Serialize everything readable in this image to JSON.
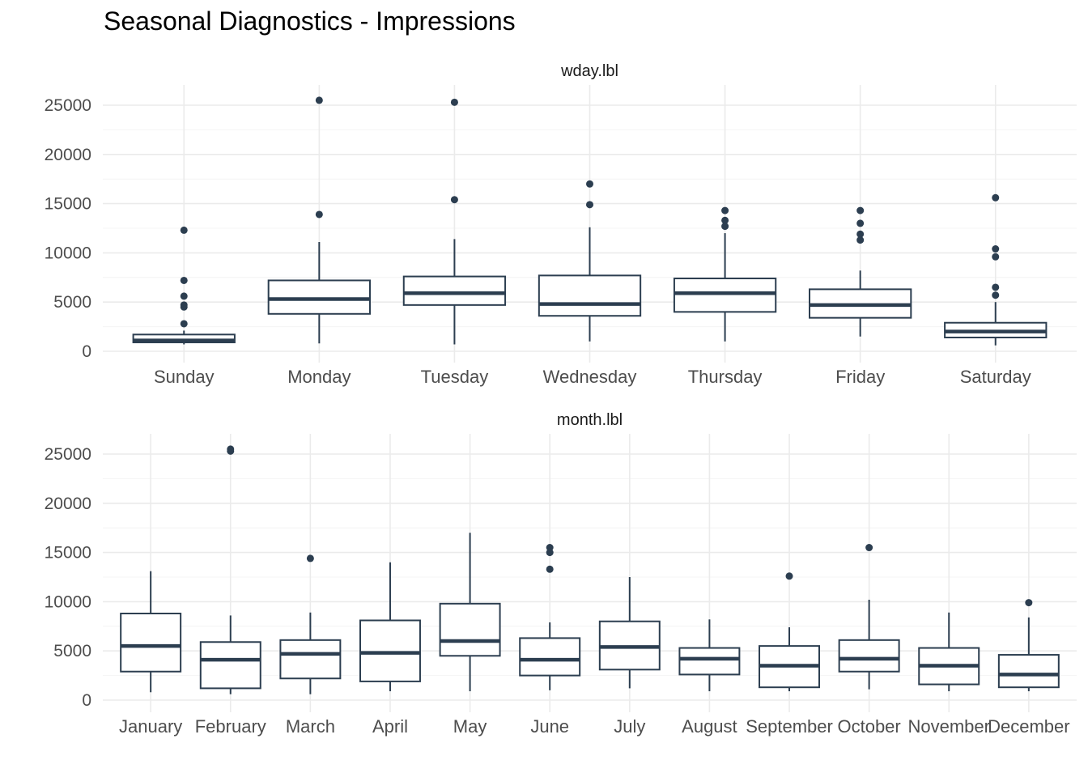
{
  "title": "Seasonal Diagnostics - Impressions",
  "colors": {
    "box": "#2c3e50",
    "grid_major": "#ebebeb",
    "grid_minor": "#f4f4f4",
    "background": "#ffffff"
  },
  "chart_data": [
    {
      "type": "boxplot",
      "panel_label": "wday.lbl",
      "ylim": [
        0,
        26000
      ],
      "yticks": [
        0,
        5000,
        10000,
        15000,
        20000,
        25000
      ],
      "ytick_labels": [
        "0",
        "5000",
        "10000",
        "15000",
        "20000",
        "25000"
      ],
      "grid": true,
      "categories": [
        "Sunday",
        "Monday",
        "Tuesday",
        "Wednesday",
        "Thursday",
        "Friday",
        "Saturday"
      ],
      "boxes": [
        {
          "min": 700,
          "q1": 900,
          "median": 1100,
          "q3": 1700,
          "max": 2100,
          "outliers": [
            2800,
            4500,
            4700,
            5600,
            7200,
            12300
          ]
        },
        {
          "min": 800,
          "q1": 3800,
          "median": 5300,
          "q3": 7200,
          "max": 11100,
          "outliers": [
            13900,
            25500
          ]
        },
        {
          "min": 700,
          "q1": 4700,
          "median": 5900,
          "q3": 7600,
          "max": 11400,
          "outliers": [
            15400,
            25300
          ]
        },
        {
          "min": 1000,
          "q1": 3600,
          "median": 4800,
          "q3": 7700,
          "max": 12600,
          "outliers": [
            14900,
            17000
          ]
        },
        {
          "min": 1000,
          "q1": 4000,
          "median": 5900,
          "q3": 7400,
          "max": 12000,
          "outliers": [
            12700,
            13300,
            14300
          ]
        },
        {
          "min": 1500,
          "q1": 3400,
          "median": 4700,
          "q3": 6300,
          "max": 8200,
          "outliers": [
            11300,
            11900,
            13000,
            14300
          ]
        },
        {
          "min": 600,
          "q1": 1400,
          "median": 2000,
          "q3": 2900,
          "max": 5000,
          "outliers": [
            5700,
            6500,
            9600,
            10400,
            15600
          ]
        }
      ]
    },
    {
      "type": "boxplot",
      "panel_label": "month.lbl",
      "ylim": [
        0,
        26000
      ],
      "yticks": [
        0,
        5000,
        10000,
        15000,
        20000,
        25000
      ],
      "ytick_labels": [
        "0",
        "5000",
        "10000",
        "15000",
        "20000",
        "25000"
      ],
      "grid": true,
      "categories": [
        "January",
        "February",
        "March",
        "April",
        "May",
        "June",
        "July",
        "August",
        "September",
        "October",
        "November",
        "December"
      ],
      "boxes": [
        {
          "min": 800,
          "q1": 2900,
          "median": 5500,
          "q3": 8800,
          "max": 13100,
          "outliers": []
        },
        {
          "min": 600,
          "q1": 1200,
          "median": 4100,
          "q3": 5900,
          "max": 8600,
          "outliers": [
            25300,
            25500
          ]
        },
        {
          "min": 600,
          "q1": 2200,
          "median": 4700,
          "q3": 6100,
          "max": 8900,
          "outliers": [
            14400
          ]
        },
        {
          "min": 900,
          "q1": 1900,
          "median": 4800,
          "q3": 8100,
          "max": 14000,
          "outliers": []
        },
        {
          "min": 900,
          "q1": 4500,
          "median": 6000,
          "q3": 9800,
          "max": 17000,
          "outliers": []
        },
        {
          "min": 1000,
          "q1": 2500,
          "median": 4100,
          "q3": 6300,
          "max": 7900,
          "outliers": [
            13300,
            15000,
            15500
          ]
        },
        {
          "min": 1200,
          "q1": 3100,
          "median": 5400,
          "q3": 8000,
          "max": 12500,
          "outliers": []
        },
        {
          "min": 900,
          "q1": 2600,
          "median": 4200,
          "q3": 5300,
          "max": 8200,
          "outliers": []
        },
        {
          "min": 900,
          "q1": 1300,
          "median": 3500,
          "q3": 5500,
          "max": 7400,
          "outliers": [
            12600
          ]
        },
        {
          "min": 1100,
          "q1": 2900,
          "median": 4200,
          "q3": 6100,
          "max": 10200,
          "outliers": [
            15500
          ]
        },
        {
          "min": 900,
          "q1": 1600,
          "median": 3500,
          "q3": 5300,
          "max": 8900,
          "outliers": []
        },
        {
          "min": 900,
          "q1": 1300,
          "median": 2600,
          "q3": 4600,
          "max": 8400,
          "outliers": [
            9900
          ]
        }
      ]
    }
  ]
}
